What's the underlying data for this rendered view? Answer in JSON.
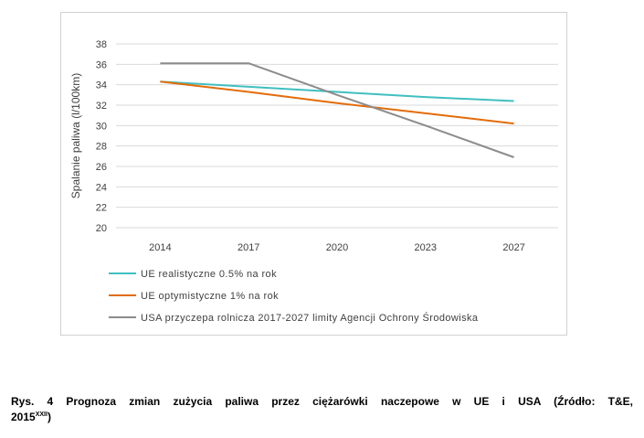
{
  "chart_data": {
    "type": "line",
    "x": [
      "2014",
      "2017",
      "2020",
      "2023",
      "2027"
    ],
    "ylabel": "Spalanie paliwa (l/100km)",
    "ylim": [
      20,
      38
    ],
    "yticks": [
      "20",
      "22",
      "24",
      "26",
      "28",
      "30",
      "32",
      "34",
      "36",
      "38"
    ],
    "grid": true,
    "legend_position": "bottom",
    "series": [
      {
        "name": "UE realistyczne 0.5% na rok",
        "color": "#40BFBF",
        "values": [
          34.3,
          33.8,
          33.3,
          32.8,
          32.4
        ]
      },
      {
        "name": "UE optymistyczne 1% na rok",
        "color": "#E36C0A",
        "values": [
          34.3,
          33.3,
          32.2,
          31.2,
          30.2
        ]
      },
      {
        "name": "USA przyczepa rolnicza 2017-2027 limity Agencji Ochrony Środowiska",
        "color": "#8C8C8C",
        "values": [
          36.1,
          36.1,
          33.0,
          30.0,
          26.9
        ]
      }
    ]
  },
  "caption": {
    "line1": "Rys. 4 Prognoza zmian zużycia paliwa przez ciężarówki naczepowe w UE i USA  (Źródło: T&E,",
    "line2": "2015",
    "superscript": "XXII",
    "line2_end": ")"
  }
}
